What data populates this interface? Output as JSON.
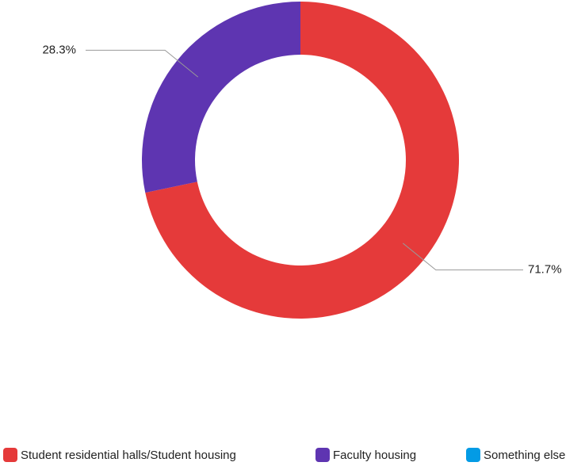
{
  "chart_data": {
    "type": "pie",
    "categories": [
      "Student residential halls/Student housing",
      "Faculty housing",
      "Something else"
    ],
    "values": [
      71.7,
      28.3,
      0
    ],
    "value_labels": [
      "71.7%",
      "28.3%",
      null
    ],
    "colors": [
      "#e53a3a",
      "#5e35b1",
      "#039be5"
    ],
    "donut": true,
    "legend": "bottom"
  }
}
